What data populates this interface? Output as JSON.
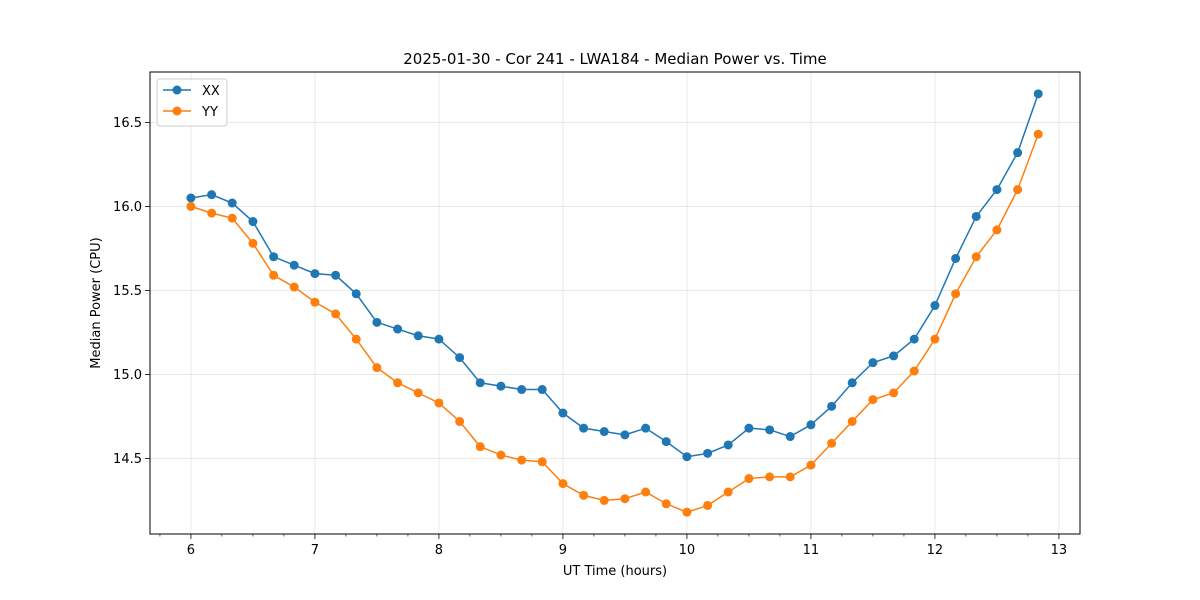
{
  "chart_data": {
    "type": "line",
    "title": "2025-01-30 - Cor 241 - LWA184 - Median Power vs. Time",
    "xlabel": "UT Time (hours)",
    "ylabel": "Median Power (CPU)",
    "xlim": [
      5.67,
      13.17
    ],
    "ylim": [
      14.05,
      16.8
    ],
    "xticks": [
      6,
      7,
      8,
      9,
      10,
      11,
      12,
      13
    ],
    "xtick_labels": [
      "6",
      "7",
      "8",
      "9",
      "10",
      "11",
      "12",
      "13"
    ],
    "yticks": [
      14.5,
      15.0,
      15.5,
      16.0,
      16.5
    ],
    "ytick_labels": [
      "14.5",
      "15.0",
      "15.5",
      "16.0",
      "16.5"
    ],
    "grid": true,
    "legend_position": "top-left",
    "x": [
      6.0,
      6.167,
      6.333,
      6.5,
      6.667,
      6.833,
      7.0,
      7.167,
      7.333,
      7.5,
      7.667,
      7.833,
      8.0,
      8.167,
      8.333,
      8.5,
      8.667,
      8.833,
      9.0,
      9.167,
      9.333,
      9.5,
      9.667,
      9.833,
      10.0,
      10.167,
      10.333,
      10.5,
      10.667,
      10.833,
      11.0,
      11.167,
      11.333,
      11.5,
      11.667,
      11.833,
      12.0,
      12.167,
      12.333,
      12.5,
      12.667,
      12.833
    ],
    "series": [
      {
        "name": "XX",
        "color": "#1f77b4",
        "values": [
          16.05,
          16.07,
          16.02,
          15.91,
          15.7,
          15.65,
          15.6,
          15.59,
          15.48,
          15.31,
          15.27,
          15.23,
          15.21,
          15.1,
          14.95,
          14.93,
          14.91,
          14.91,
          14.77,
          14.68,
          14.66,
          14.64,
          14.68,
          14.6,
          14.51,
          14.53,
          14.58,
          14.68,
          14.67,
          14.63,
          14.7,
          14.81,
          14.95,
          15.07,
          15.11,
          15.21,
          15.41,
          15.69,
          15.94,
          16.1,
          16.32,
          16.67
        ]
      },
      {
        "name": "YY",
        "color": "#ff7f0e",
        "values": [
          16.0,
          15.96,
          15.93,
          15.78,
          15.59,
          15.52,
          15.43,
          15.36,
          15.21,
          15.04,
          14.95,
          14.89,
          14.83,
          14.72,
          14.57,
          14.52,
          14.49,
          14.48,
          14.35,
          14.28,
          14.25,
          14.26,
          14.3,
          14.23,
          14.18,
          14.22,
          14.3,
          14.38,
          14.39,
          14.39,
          14.46,
          14.59,
          14.72,
          14.85,
          14.89,
          15.02,
          15.21,
          15.48,
          15.7,
          15.86,
          16.1,
          16.43
        ]
      }
    ]
  }
}
